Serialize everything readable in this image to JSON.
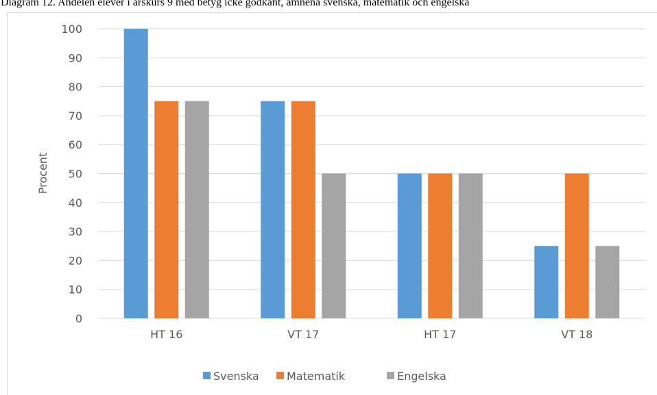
{
  "chart_data": {
    "type": "bar",
    "title": "Diagram 12. Andelen elever i årskurs 9 med betyg icke godkänt, ämnena svenska, matematik och engelska",
    "y_label": "Procent",
    "categories": [
      "HT 16",
      "VT 17",
      "HT 17",
      "VT 18"
    ],
    "series": [
      {
        "name": "Svenska",
        "color": "#5b9bd5",
        "values": [
          100,
          75,
          50,
          25
        ]
      },
      {
        "name": "Matematik",
        "color": "#ed7d31",
        "values": [
          75,
          75,
          50,
          50
        ]
      },
      {
        "name": "Engelska",
        "color": "#a5a5a5",
        "values": [
          75,
          50,
          50,
          25
        ]
      }
    ],
    "ylim": [
      0,
      100
    ],
    "yticks": [
      0,
      10,
      20,
      30,
      40,
      50,
      60,
      70,
      80,
      90,
      100
    ],
    "grid": true,
    "legend": "bottom"
  }
}
